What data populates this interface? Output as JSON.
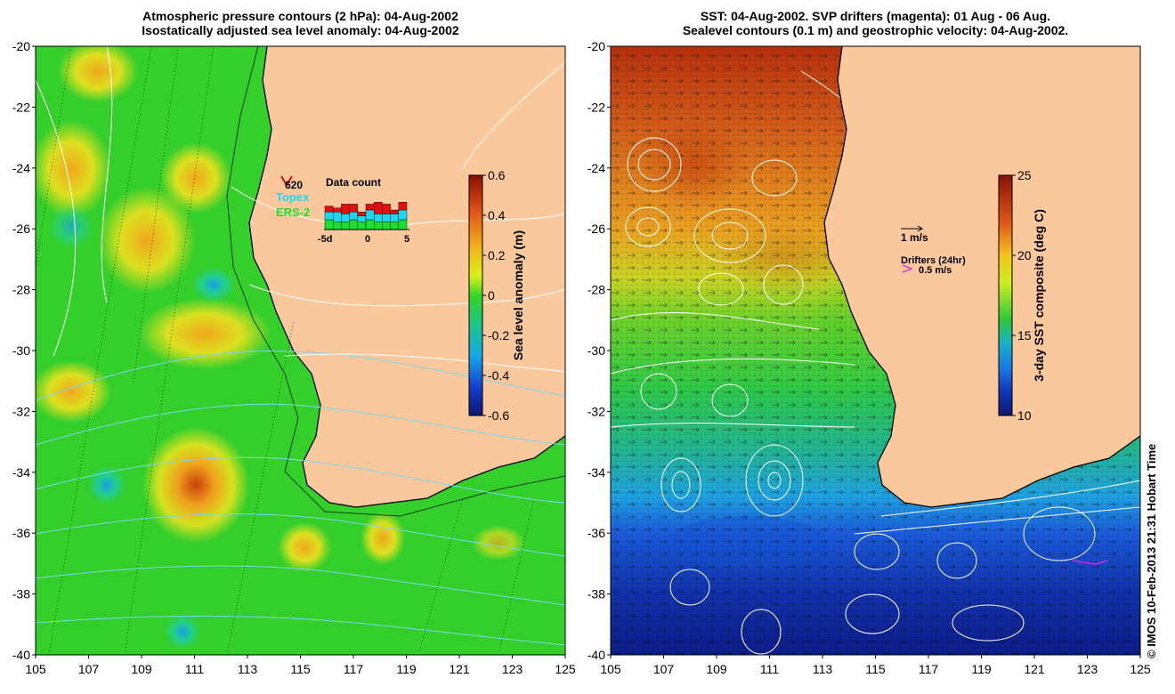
{
  "left_panel": {
    "title_line1": "Atmospheric pressure contours (2 hPa): 04-Aug-2002",
    "title_line2": "Isostatically adjusted sea level anomaly: 04-Aug-2002",
    "colorbar": {
      "label": "Sea level anomaly (m)",
      "ticks": [
        "0.6",
        "0.4",
        "0.2",
        "0",
        "-0.2",
        "-0.4",
        "-0.6"
      ],
      "min": -0.6,
      "max": 0.6
    },
    "inset": {
      "title": "Data count",
      "count": "620",
      "legend": [
        {
          "label": "Topex",
          "color": "#19d8f0"
        },
        {
          "label": "ERS-2",
          "color": "#19e030"
        }
      ],
      "xticks": [
        "-5d",
        "0",
        "5"
      ],
      "bars": [
        {
          "red": 3,
          "cyan": 4,
          "green": 5
        },
        {
          "red": 2,
          "cyan": 5,
          "green": 4
        },
        {
          "red": 5,
          "cyan": 4,
          "green": 4
        },
        {
          "red": 4,
          "cyan": 4,
          "green": 5
        },
        {
          "red": 2,
          "cyan": 3,
          "green": 4
        },
        {
          "red": 3,
          "cyan": 5,
          "green": 5
        },
        {
          "red": 6,
          "cyan": 4,
          "green": 4
        },
        {
          "red": 5,
          "cyan": 4,
          "green": 4
        },
        {
          "red": 2,
          "cyan": 4,
          "green": 4
        },
        {
          "red": 4,
          "cyan": 5,
          "green": 5
        }
      ]
    }
  },
  "right_panel": {
    "title_line1": "SST: 04-Aug-2002. SVP drifters (magenta): 01 Aug - 06 Aug.",
    "title_line2": "Sealevel contours (0.1 m) and geostrophic velocity: 04-Aug-2002.",
    "colorbar": {
      "label": "3-day SST composite (deg C)",
      "ticks": [
        "25",
        "20",
        "15",
        "10"
      ],
      "min": 10,
      "max": 25
    },
    "velocity_legend": "1 m/s",
    "drifters_legend_title": "Drifters (24hr)",
    "drifters_legend_value": "0.5 m/s"
  },
  "axes": {
    "lat_ticks": [
      "-20",
      "-22",
      "-24",
      "-26",
      "-28",
      "-30",
      "-32",
      "-34",
      "-36",
      "-38",
      "-40"
    ],
    "lon_ticks": [
      "105",
      "107",
      "109",
      "111",
      "113",
      "115",
      "117",
      "119",
      "121",
      "123",
      "125"
    ]
  },
  "credit": "© IMOS 10-Feb-2013 21:31 Hobart Time",
  "colors": {
    "land": "#f9c89c",
    "sla_positive": "#f0a21e",
    "sla_neutral": "#3bd42a",
    "sst_warm": "#c2440c",
    "sst_cold": "#0a1f8c"
  }
}
